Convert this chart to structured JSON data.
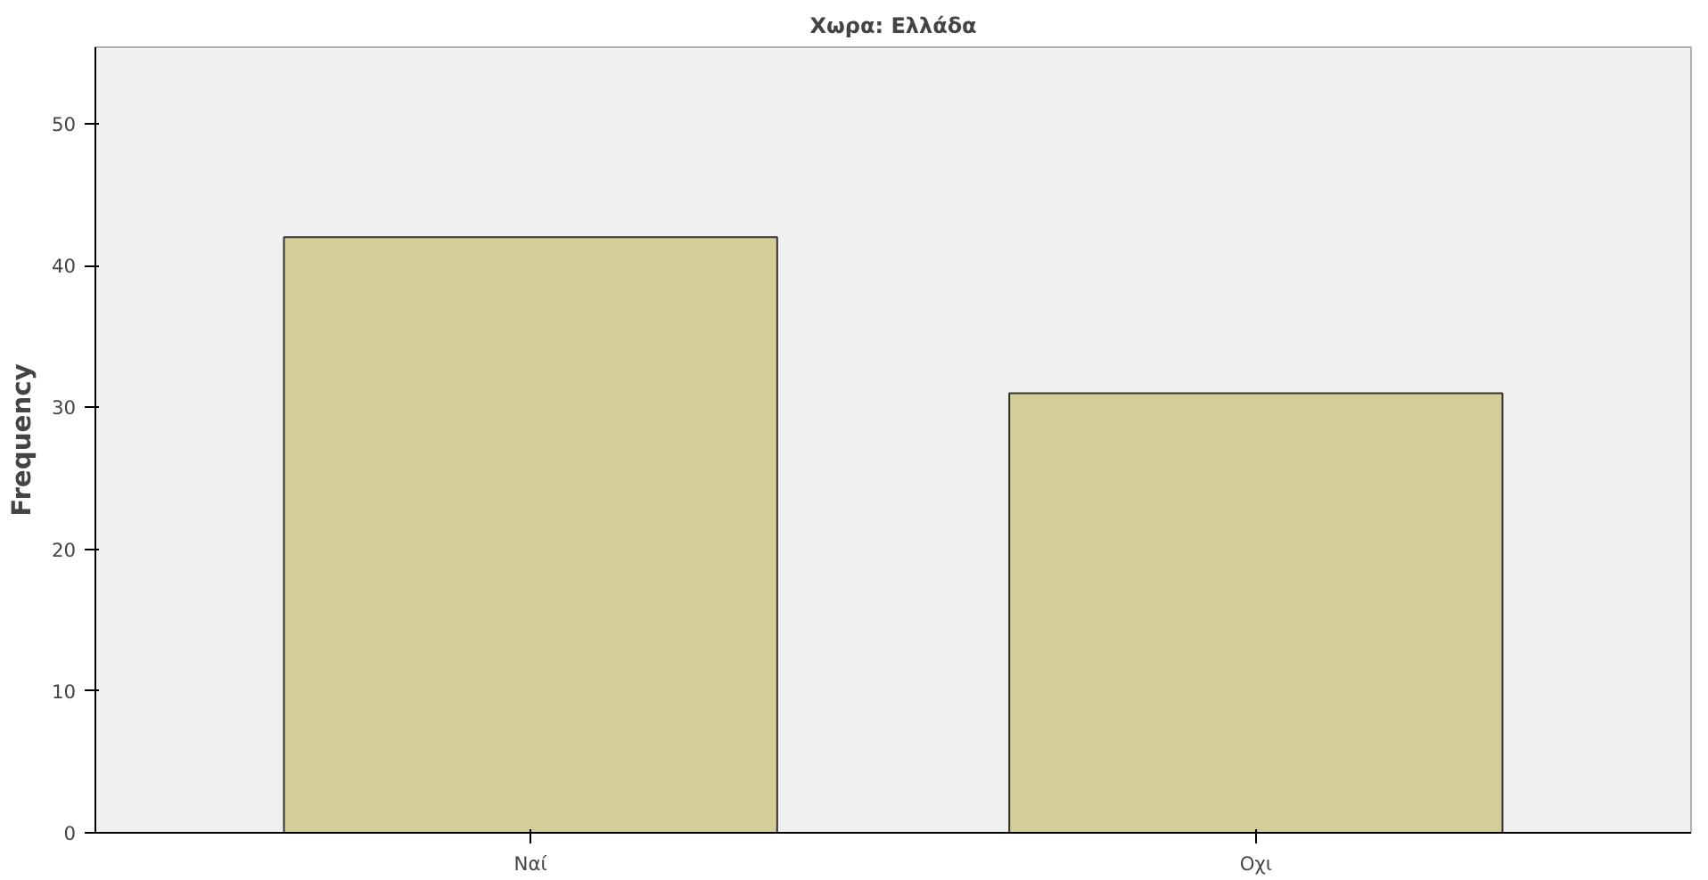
{
  "chart_data": {
    "type": "bar",
    "title": "Χωρα: Ελλάδα",
    "ylabel": "Frequency",
    "categories": [
      "Ναί",
      "Οχι"
    ],
    "values": [
      42,
      31
    ],
    "color": "#d3ce97",
    "ylim": [
      0,
      55.4
    ],
    "yticks": [
      0,
      10,
      20,
      30,
      40,
      50
    ],
    "grid": false
  }
}
